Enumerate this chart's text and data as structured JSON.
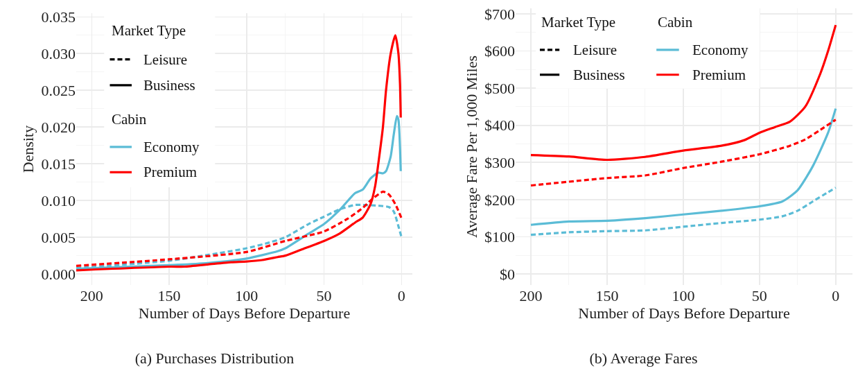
{
  "chart_data": [
    {
      "type": "line",
      "title": "(a) Purchases Distribution",
      "xlabel": "Number of Days Before Departure",
      "ylabel": "Density",
      "xlim": [
        210,
        -7
      ],
      "xticks": [
        200,
        150,
        100,
        50,
        0
      ],
      "ylim": [
        -0.0015,
        0.0355
      ],
      "yticks": [
        {
          "value": 0,
          "label": "0.000"
        },
        {
          "value": 0.005,
          "label": "0.005"
        },
        {
          "value": 0.01,
          "label": "0.010"
        },
        {
          "value": 0.015,
          "label": "0.015"
        },
        {
          "value": 0.02,
          "label": "0.020"
        },
        {
          "value": 0.025,
          "label": "0.025"
        },
        {
          "value": 0.03,
          "label": "0.030"
        },
        {
          "value": 0.035,
          "label": "0.035"
        }
      ],
      "grid": true,
      "marker": "none",
      "annotations": [
        "Market Type",
        "Leisure",
        "Business",
        "Cabin",
        "Economy",
        "Premium"
      ],
      "series": [
        {
          "color": "#5bbcd6",
          "line_style": "dashed",
          "x": [
            210,
            150,
            125,
            100,
            85,
            75,
            60,
            50,
            40,
            30,
            25,
            15,
            8,
            5,
            2,
            0
          ],
          "values": [
            0.0008,
            0.0018,
            0.0026,
            0.0035,
            0.0043,
            0.005,
            0.0068,
            0.0078,
            0.0088,
            0.0094,
            0.0094,
            0.0093,
            0.0091,
            0.0085,
            0.0065,
            0.005
          ]
        },
        {
          "color": "#5bbcd6",
          "line_style": "solid",
          "x": [
            210,
            150,
            125,
            100,
            80,
            75,
            60,
            50,
            40,
            30,
            25,
            20,
            15,
            12,
            10,
            7,
            5,
            3,
            2,
            0.5
          ],
          "values": [
            0.0007,
            0.0012,
            0.0015,
            0.0021,
            0.0031,
            0.0035,
            0.0055,
            0.0068,
            0.0087,
            0.011,
            0.0115,
            0.013,
            0.0138,
            0.0137,
            0.014,
            0.016,
            0.019,
            0.0215,
            0.021,
            0.014
          ]
        },
        {
          "color": "#ff0000",
          "line_style": "dashed",
          "x": [
            210,
            150,
            100,
            75,
            50,
            35,
            25,
            20,
            12,
            8,
            4,
            0
          ],
          "values": [
            0.0011,
            0.002,
            0.003,
            0.0045,
            0.0058,
            0.0075,
            0.009,
            0.01,
            0.0112,
            0.0108,
            0.0095,
            0.0076
          ]
        },
        {
          "color": "#ff0000",
          "line_style": "solid",
          "x": [
            210,
            150,
            140,
            125,
            110,
            100,
            90,
            80,
            75,
            65,
            50,
            40,
            30,
            25,
            20,
            17,
            15,
            12,
            10,
            7,
            4,
            2,
            1,
            0.5
          ],
          "values": [
            0.0005,
            0.001,
            0.001,
            0.0013,
            0.0016,
            0.0017,
            0.0019,
            0.0023,
            0.0025,
            0.0033,
            0.0045,
            0.0055,
            0.007,
            0.0077,
            0.0095,
            0.012,
            0.015,
            0.02,
            0.025,
            0.03,
            0.0325,
            0.03,
            0.026,
            0.0213
          ]
        }
      ]
    },
    {
      "type": "line",
      "title": "(b) Average Fares",
      "xlabel": "Number of Days Before Departure",
      "ylabel": "Average Fare Per 1,000 Miles",
      "xlim": [
        210,
        -11
      ],
      "xticks": [
        200,
        150,
        100,
        50,
        0
      ],
      "ylim": [
        -30,
        715
      ],
      "yticks": [
        {
          "value": 0,
          "label": "$0"
        },
        {
          "value": 100,
          "label": "$100"
        },
        {
          "value": 200,
          "label": "$200"
        },
        {
          "value": 300,
          "label": "$300"
        },
        {
          "value": 400,
          "label": "$400"
        },
        {
          "value": 500,
          "label": "$500"
        },
        {
          "value": 600,
          "label": "$600"
        },
        {
          "value": 700,
          "label": "$700"
        }
      ],
      "grid": true,
      "marker": "none",
      "annotations": [
        "Market Type",
        "Leisure",
        "Business",
        "Cabin",
        "Economy",
        "Premium"
      ],
      "series": [
        {
          "color": "#5bbcd6",
          "line_style": "dashed",
          "x": [
            200,
            175,
            150,
            125,
            100,
            75,
            50,
            35,
            25,
            15,
            5,
            0
          ],
          "values": [
            105,
            112,
            115,
            117,
            127,
            137,
            146,
            155,
            170,
            195,
            220,
            232
          ]
        },
        {
          "color": "#5bbcd6",
          "line_style": "solid",
          "x": [
            200,
            175,
            150,
            125,
            100,
            75,
            50,
            35,
            25,
            15,
            5,
            0
          ],
          "values": [
            132,
            141,
            143,
            150,
            160,
            170,
            182,
            195,
            225,
            290,
            380,
            445
          ]
        },
        {
          "color": "#ff0000",
          "line_style": "dashed",
          "x": [
            200,
            150,
            125,
            100,
            75,
            50,
            30,
            20,
            10,
            0
          ],
          "values": [
            238,
            258,
            265,
            285,
            302,
            322,
            345,
            362,
            388,
            415
          ]
        },
        {
          "color": "#ff0000",
          "line_style": "solid",
          "x": [
            200,
            175,
            150,
            125,
            100,
            75,
            60,
            50,
            40,
            30,
            20,
            10,
            5,
            0
          ],
          "values": [
            320,
            316,
            307,
            315,
            332,
            345,
            360,
            380,
            395,
            410,
            450,
            540,
            600,
            670
          ]
        }
      ]
    }
  ]
}
